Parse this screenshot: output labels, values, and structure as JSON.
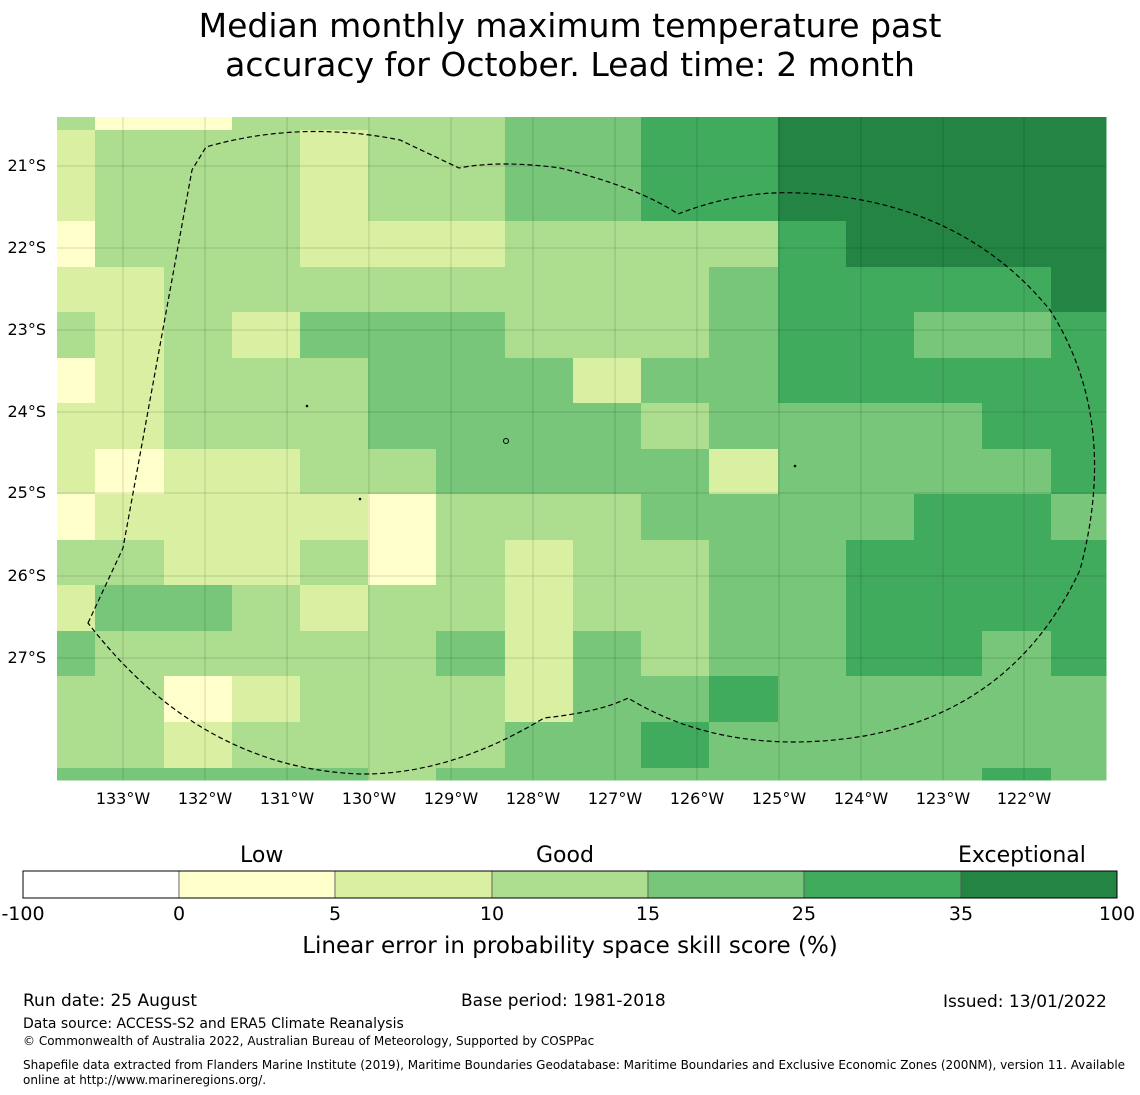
{
  "title": {
    "line1": "Median monthly maximum temperature past",
    "line2": "accuracy for October. Lead time: 2 month"
  },
  "map": {
    "lat_labels": [
      "21°S",
      "22°S",
      "23°S",
      "24°S",
      "25°S",
      "26°S",
      "27°S"
    ],
    "lon_labels": [
      "133°W",
      "132°W",
      "131°W",
      "130°W",
      "129°W",
      "128°W",
      "127°W",
      "126°W",
      "125°W",
      "124°W",
      "123°W",
      "122°W"
    ],
    "grid": [
      [
        3,
        1,
        1,
        3,
        3,
        3,
        3,
        4,
        4,
        5,
        5,
        6,
        6,
        6,
        6,
        6
      ],
      [
        2,
        3,
        3,
        3,
        2,
        3,
        3,
        4,
        4,
        5,
        5,
        6,
        6,
        6,
        6,
        6
      ],
      [
        2,
        3,
        3,
        3,
        2,
        3,
        3,
        4,
        4,
        5,
        5,
        6,
        6,
        6,
        6,
        6
      ],
      [
        1,
        3,
        3,
        3,
        2,
        2,
        2,
        3,
        3,
        3,
        3,
        5,
        6,
        6,
        6,
        6
      ],
      [
        2,
        2,
        3,
        3,
        3,
        3,
        3,
        3,
        3,
        3,
        4,
        5,
        5,
        5,
        5,
        6
      ],
      [
        3,
        2,
        3,
        2,
        4,
        4,
        4,
        3,
        3,
        3,
        4,
        5,
        5,
        4,
        4,
        5
      ],
      [
        1,
        2,
        3,
        3,
        3,
        4,
        4,
        4,
        2,
        4,
        4,
        5,
        5,
        5,
        5,
        5
      ],
      [
        2,
        2,
        3,
        3,
        3,
        4,
        4,
        4,
        4,
        3,
        4,
        4,
        4,
        4,
        5,
        5
      ],
      [
        2,
        1,
        2,
        2,
        3,
        3,
        4,
        4,
        4,
        4,
        2,
        4,
        4,
        4,
        4,
        5
      ],
      [
        1,
        2,
        2,
        2,
        2,
        1,
        3,
        3,
        3,
        4,
        4,
        4,
        4,
        5,
        5,
        4
      ],
      [
        3,
        3,
        2,
        2,
        3,
        1,
        3,
        2,
        3,
        3,
        4,
        4,
        5,
        5,
        5,
        5
      ],
      [
        2,
        4,
        4,
        3,
        2,
        3,
        3,
        2,
        3,
        3,
        4,
        4,
        5,
        5,
        5,
        5
      ],
      [
        4,
        3,
        3,
        3,
        3,
        3,
        4,
        2,
        4,
        3,
        4,
        4,
        5,
        5,
        4,
        5
      ],
      [
        3,
        3,
        1,
        2,
        3,
        3,
        3,
        2,
        4,
        4,
        5,
        4,
        4,
        4,
        4,
        4
      ],
      [
        3,
        3,
        2,
        3,
        3,
        3,
        3,
        4,
        4,
        5,
        4,
        4,
        4,
        4,
        4,
        4
      ],
      [
        4,
        4,
        4,
        4,
        4,
        3,
        4,
        4,
        4,
        4,
        4,
        4,
        4,
        4,
        5,
        4
      ]
    ]
  },
  "colorbar": {
    "colors": [
      "#ffffff",
      "#ffffcc",
      "#d9f0a3",
      "#addd8e",
      "#78c679",
      "#41ab5d",
      "#238443"
    ],
    "ticks": [
      "-100",
      "0",
      "5",
      "10",
      "15",
      "25",
      "35",
      "100"
    ],
    "category_low": "Low",
    "category_good": "Good",
    "category_exceptional": "Exceptional",
    "title": "Linear error in probability space skill score (%)"
  },
  "footer": {
    "run_date": "Run date: 25 August",
    "base_period": "Base period: 1981-2018",
    "issued": "Issued: 13/01/2022",
    "data_source": "Data source: ACCESS-S2 and ERA5 Climate Reanalysis",
    "copyright": "© Commonwealth of Australia 2022, Australian Bureau of Meteorology, Supported by COSPPac",
    "shapefile_line1": "Shapefile data extracted from Flanders Marine Institute (2019), Maritime Boundaries Geodatabase: Maritime Boundaries and Exclusive Economic Zones (200NM), version 11. Available",
    "shapefile_line2": "online at http://www.marineregions.org/."
  }
}
